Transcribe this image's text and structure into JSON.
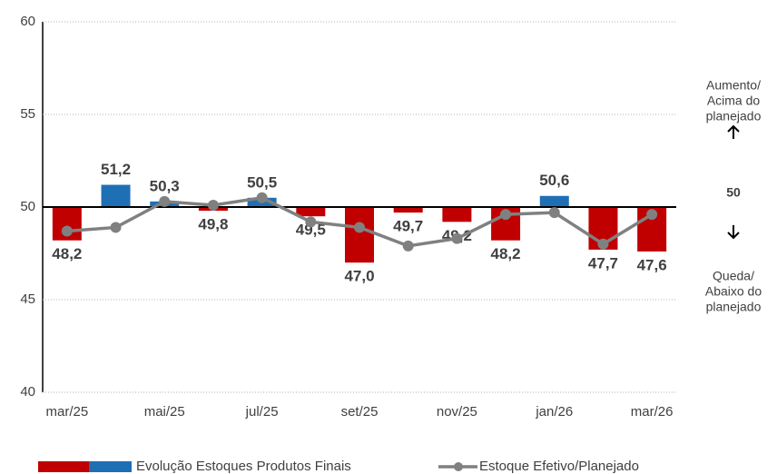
{
  "chart_data": {
    "type": "bar",
    "categories": [
      "mar/25",
      null,
      "mai/25",
      null,
      "jul/25",
      null,
      "set/25",
      null,
      "nov/25",
      null,
      "jan/26",
      null,
      "mar/26"
    ],
    "baseline": 50,
    "series": [
      {
        "name": "Evolução Estoques Produtos Finais",
        "type": "bar",
        "color_below": "#c00000",
        "color_above": "#1f6fb5",
        "values": [
          48.2,
          51.2,
          50.3,
          49.8,
          50.5,
          49.5,
          47.0,
          49.7,
          49.2,
          48.2,
          50.6,
          47.7,
          47.6
        ],
        "value_labels": [
          "48,2",
          "51,2",
          "50,3",
          "49,8",
          "50,5",
          "49,5",
          "47,0",
          "49,7",
          "49,2",
          "48,2",
          "50,6",
          "47,7",
          "47,6"
        ]
      },
      {
        "name": "Estoque Efetivo/Planejado",
        "type": "line",
        "color": "#808080",
        "values": [
          48.7,
          48.9,
          50.3,
          50.1,
          50.5,
          49.2,
          48.9,
          47.9,
          48.3,
          49.6,
          49.7,
          48.0,
          49.6
        ]
      }
    ],
    "ylim": [
      40,
      60
    ],
    "yticks": [
      40,
      45,
      50,
      55,
      60
    ],
    "grid": true,
    "annotation_top": [
      "Aumento/",
      "Acima do",
      "planejado"
    ],
    "annotation_mid": "50",
    "annotation_bottom": [
      "Queda/",
      "Abaixo do",
      "planejado"
    ]
  }
}
